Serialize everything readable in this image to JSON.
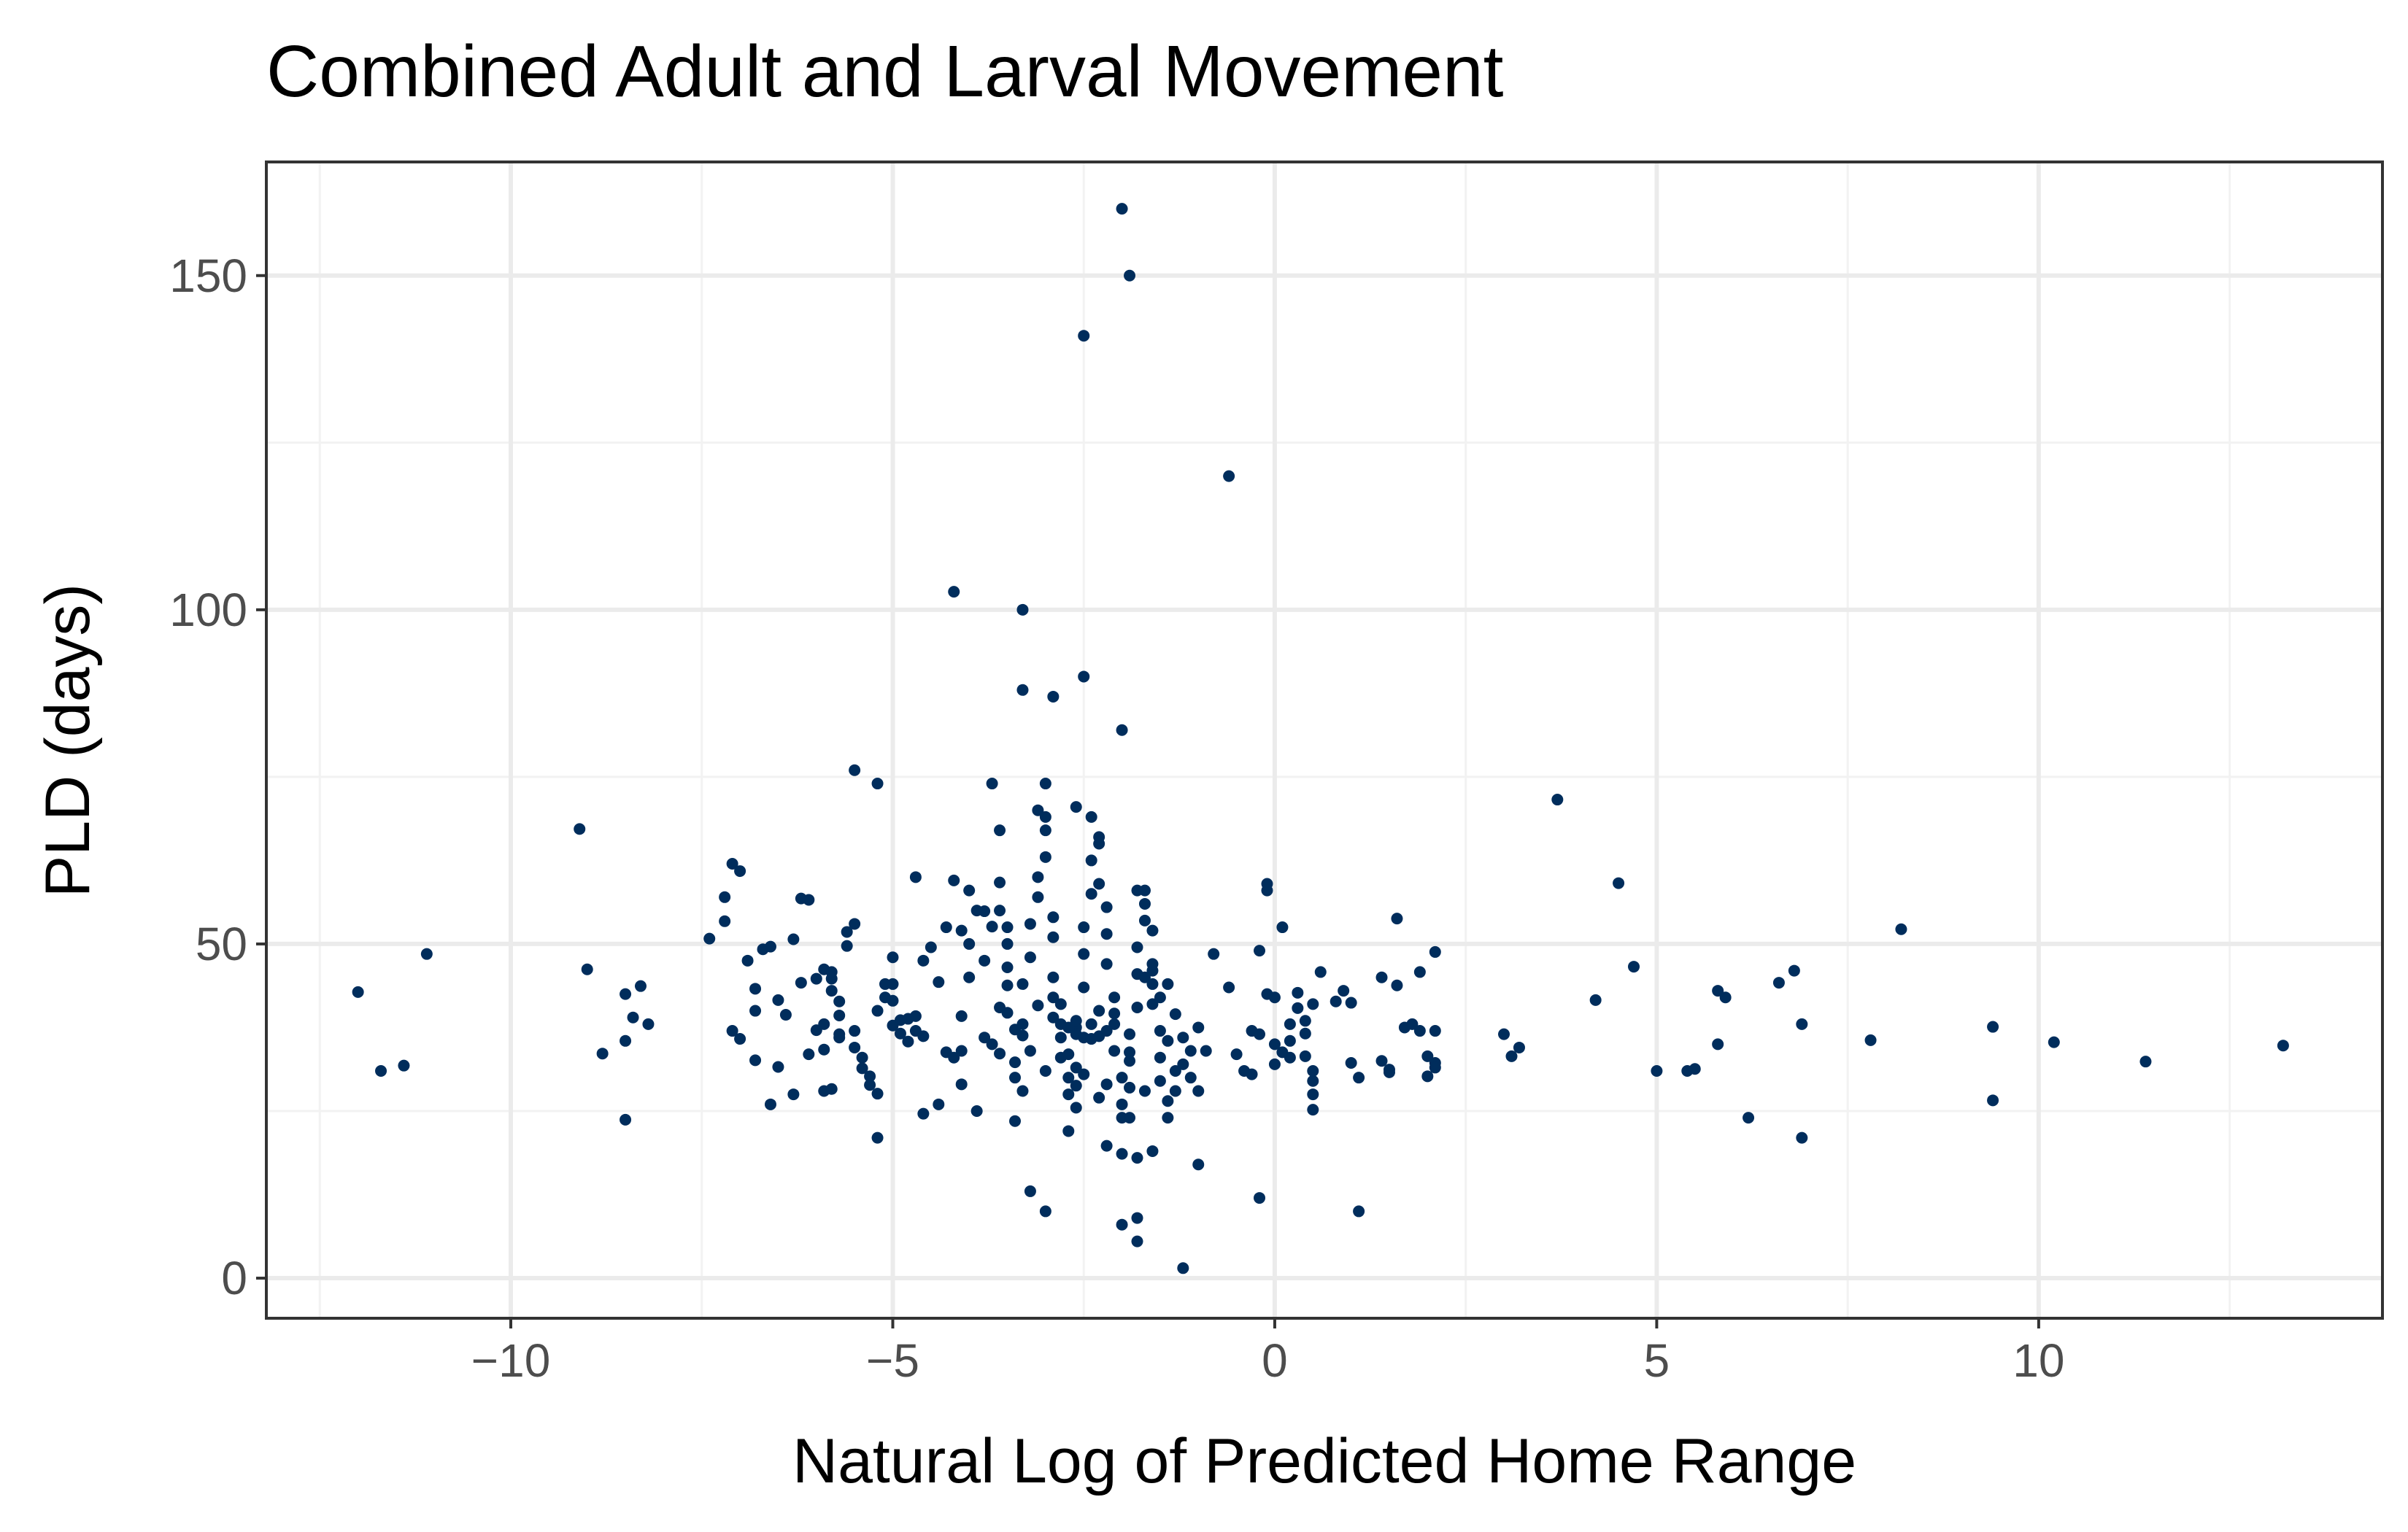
{
  "chart_data": {
    "type": "scatter",
    "title": "Combined Adult and Larval Movement",
    "xlabel": "Natural Log of Predicted Home Range",
    "ylabel": "PLD (days)",
    "xlim": [
      -13.2,
      14.5
    ],
    "ylim": [
      -6,
      167
    ],
    "x_major_ticks": [
      -10,
      -5,
      0,
      5,
      10
    ],
    "x_minor_ticks": [
      -12.5,
      -7.5,
      -2.5,
      2.5,
      7.5,
      12.5
    ],
    "y_major_ticks": [
      0,
      50,
      100,
      150
    ],
    "y_minor_ticks": [
      25,
      75,
      125
    ],
    "x_tick_labels": [
      "−10",
      "−5",
      "0",
      "5",
      "10"
    ],
    "y_tick_labels": [
      "0",
      "50",
      "100",
      "150"
    ],
    "grid": true,
    "legend": "none",
    "point_color": "#002d5c",
    "points": [
      [
        -12.0,
        42.8
      ],
      [
        -11.7,
        31.0
      ],
      [
        -11.4,
        31.8
      ],
      [
        -11.1,
        48.5
      ],
      [
        -9.1,
        67.2
      ],
      [
        -9.0,
        46.2
      ],
      [
        -8.8,
        33.6
      ],
      [
        -8.5,
        42.5
      ],
      [
        -8.5,
        23.7
      ],
      [
        -8.4,
        39.0
      ],
      [
        -8.3,
        43.7
      ],
      [
        -8.2,
        38.0
      ],
      [
        -8.5,
        35.5
      ],
      [
        -7.4,
        50.8
      ],
      [
        -7.2,
        57.0
      ],
      [
        -7.2,
        53.4
      ],
      [
        -7.1,
        62.0
      ],
      [
        -7.0,
        60.9
      ],
      [
        -7.1,
        37.0
      ],
      [
        -7.0,
        35.8
      ],
      [
        -6.9,
        47.5
      ],
      [
        -6.8,
        43.3
      ],
      [
        -6.8,
        40.0
      ],
      [
        -6.7,
        49.2
      ],
      [
        -6.6,
        49.6
      ],
      [
        -6.5,
        41.6
      ],
      [
        -6.5,
        31.6
      ],
      [
        -6.6,
        26.0
      ],
      [
        -6.8,
        32.6
      ],
      [
        -6.4,
        39.4
      ],
      [
        -6.3,
        50.7
      ],
      [
        -6.2,
        56.8
      ],
      [
        -6.1,
        56.6
      ],
      [
        -6.2,
        44.2
      ],
      [
        -6.0,
        44.8
      ],
      [
        -6.0,
        37.1
      ],
      [
        -6.3,
        27.5
      ],
      [
        -6.1,
        33.5
      ],
      [
        -5.9,
        38.0
      ],
      [
        -5.9,
        46.2
      ],
      [
        -5.8,
        45.8
      ],
      [
        -5.8,
        44.8
      ],
      [
        -5.8,
        43.0
      ],
      [
        -5.7,
        41.4
      ],
      [
        -5.7,
        39.3
      ],
      [
        -5.7,
        36.5
      ],
      [
        -5.7,
        36.0
      ],
      [
        -5.8,
        28.3
      ],
      [
        -5.9,
        28.0
      ],
      [
        -5.9,
        34.2
      ],
      [
        -5.6,
        51.8
      ],
      [
        -5.6,
        49.7
      ],
      [
        -5.5,
        53.0
      ],
      [
        -5.5,
        37.0
      ],
      [
        -5.5,
        34.5
      ],
      [
        -5.4,
        33.0
      ],
      [
        -5.4,
        31.4
      ],
      [
        -5.3,
        30.2
      ],
      [
        -5.3,
        28.9
      ],
      [
        -5.2,
        27.6
      ],
      [
        -5.2,
        40.0
      ],
      [
        -5.1,
        42.0
      ],
      [
        -5.1,
        44.0
      ],
      [
        -5.5,
        76.0
      ],
      [
        -5.2,
        74.0
      ],
      [
        -5.0,
        44.0
      ],
      [
        -5.0,
        41.5
      ],
      [
        -5.0,
        37.8
      ],
      [
        -4.9,
        38.6
      ],
      [
        -4.9,
        36.6
      ],
      [
        -4.8,
        35.4
      ],
      [
        -4.8,
        38.8
      ],
      [
        -4.7,
        39.2
      ],
      [
        -4.7,
        37.0
      ],
      [
        -4.6,
        36.2
      ],
      [
        -5.2,
        21.0
      ],
      [
        -4.7,
        60.0
      ],
      [
        -4.6,
        47.5
      ],
      [
        -4.5,
        49.5
      ],
      [
        -4.6,
        24.6
      ],
      [
        -4.4,
        44.3
      ],
      [
        -5.0,
        48.0
      ],
      [
        -4.3,
        33.8
      ],
      [
        -4.1,
        34.0
      ],
      [
        -4.0,
        50.0
      ],
      [
        -4.1,
        39.2
      ],
      [
        -3.9,
        25.0
      ],
      [
        -3.8,
        54.9
      ],
      [
        -3.7,
        52.6
      ],
      [
        -3.7,
        35.0
      ],
      [
        -3.6,
        33.6
      ],
      [
        -3.6,
        59.2
      ],
      [
        -3.6,
        55.0
      ],
      [
        -3.5,
        52.5
      ],
      [
        -3.5,
        50.0
      ],
      [
        -3.5,
        46.5
      ],
      [
        -3.5,
        43.8
      ],
      [
        -3.5,
        39.7
      ],
      [
        -3.4,
        37.2
      ],
      [
        -3.4,
        32.3
      ],
      [
        -3.4,
        23.5
      ],
      [
        -3.3,
        28.0
      ],
      [
        -3.3,
        36.3
      ],
      [
        -3.3,
        44.0
      ],
      [
        -3.2,
        48.0
      ],
      [
        -3.2,
        53.0
      ],
      [
        -3.1,
        57.0
      ],
      [
        -3.1,
        60.0
      ],
      [
        -3.0,
        74.0
      ],
      [
        -3.0,
        69.0
      ],
      [
        -3.0,
        67.0
      ],
      [
        -3.0,
        63.0
      ],
      [
        -2.9,
        54.0
      ],
      [
        -2.9,
        51.0
      ],
      [
        -2.9,
        45.0
      ],
      [
        -2.8,
        41.0
      ],
      [
        -2.8,
        36.0
      ],
      [
        -2.8,
        33.0
      ],
      [
        -2.7,
        30.0
      ],
      [
        -2.7,
        27.5
      ],
      [
        -2.7,
        22.0
      ],
      [
        -2.6,
        25.5
      ],
      [
        -2.6,
        31.5
      ],
      [
        -2.6,
        37.5
      ],
      [
        -2.5,
        43.5
      ],
      [
        -2.5,
        48.5
      ],
      [
        -2.5,
        52.5
      ],
      [
        -2.4,
        57.5
      ],
      [
        -2.4,
        62.5
      ],
      [
        -2.4,
        69.0
      ],
      [
        -2.3,
        65.0
      ],
      [
        -2.3,
        59.0
      ],
      [
        -2.2,
        55.5
      ],
      [
        -2.2,
        51.5
      ],
      [
        -2.2,
        47.0
      ],
      [
        -2.1,
        42.0
      ],
      [
        -2.1,
        38.0
      ],
      [
        -2.1,
        34.0
      ],
      [
        -2.0,
        30.0
      ],
      [
        -2.0,
        26.0
      ],
      [
        -2.0,
        24.0
      ],
      [
        -1.9,
        28.5
      ],
      [
        -1.9,
        32.5
      ],
      [
        -1.9,
        36.5
      ],
      [
        -1.8,
        40.5
      ],
      [
        -1.8,
        45.5
      ],
      [
        -1.8,
        49.5
      ],
      [
        -1.7,
        53.5
      ],
      [
        -1.7,
        56.0
      ],
      [
        -1.7,
        58.0
      ],
      [
        -1.6,
        52.0
      ],
      [
        -1.6,
        46.0
      ],
      [
        -1.6,
        41.0
      ],
      [
        -1.5,
        37.0
      ],
      [
        -1.5,
        33.0
      ],
      [
        -1.5,
        29.5
      ],
      [
        -1.4,
        26.5
      ],
      [
        -1.4,
        24.0
      ],
      [
        -1.4,
        35.5
      ],
      [
        -1.3,
        39.5
      ],
      [
        -1.3,
        31.0
      ],
      [
        -1.3,
        28.0
      ],
      [
        -1.2,
        32.0
      ],
      [
        -1.2,
        36.0
      ],
      [
        -1.1,
        34.0
      ],
      [
        -1.1,
        30.0
      ],
      [
        -1.0,
        28.0
      ],
      [
        -1.0,
        37.5
      ],
      [
        -0.9,
        34.0
      ],
      [
        -2.0,
        160.0
      ],
      [
        -1.9,
        150.0
      ],
      [
        -2.5,
        141.0
      ],
      [
        -0.6,
        120.0
      ],
      [
        -4.2,
        102.7
      ],
      [
        -3.3,
        100.0
      ],
      [
        -2.5,
        90.0
      ],
      [
        -3.3,
        88.0
      ],
      [
        -2.9,
        87.0
      ],
      [
        -2.0,
        82.0
      ],
      [
        -3.7,
        74.0
      ],
      [
        -3.1,
        70.0
      ],
      [
        -2.6,
        70.5
      ],
      [
        -2.3,
        66.0
      ],
      [
        -3.6,
        67.0
      ],
      [
        -1.8,
        58.0
      ],
      [
        -1.7,
        45.0
      ],
      [
        -1.6,
        47.0
      ],
      [
        -1.6,
        44.0
      ],
      [
        -1.5,
        42.0
      ],
      [
        -1.4,
        44.0
      ],
      [
        -1.9,
        24.0
      ],
      [
        -2.2,
        19.8
      ],
      [
        -2.0,
        18.6
      ],
      [
        -1.8,
        18.0
      ],
      [
        -1.6,
        19.0
      ],
      [
        -1.0,
        17.0
      ],
      [
        -2.0,
        8.0
      ],
      [
        -1.8,
        9.0
      ],
      [
        -1.8,
        5.5
      ],
      [
        -3.2,
        13.0
      ],
      [
        -3.0,
        10.0
      ],
      [
        -1.2,
        1.5
      ],
      [
        -2.9,
        39.0
      ],
      [
        -2.8,
        38.0
      ],
      [
        -2.7,
        37.5
      ],
      [
        -2.6,
        36.5
      ],
      [
        -2.5,
        36.0
      ],
      [
        -2.4,
        35.8
      ],
      [
        -2.3,
        36.2
      ],
      [
        -2.2,
        37.0
      ],
      [
        -2.6,
        38.5
      ],
      [
        -2.4,
        38.0
      ],
      [
        -2.3,
        40.0
      ],
      [
        -2.1,
        39.6
      ],
      [
        -3.3,
        38.0
      ],
      [
        -3.1,
        40.8
      ],
      [
        -2.9,
        42.0
      ],
      [
        -2.7,
        33.5
      ],
      [
        -3.0,
        31.0
      ],
      [
        -2.5,
        30.5
      ],
      [
        -2.2,
        29.0
      ],
      [
        -1.9,
        33.8
      ],
      [
        -1.7,
        28.0
      ],
      [
        -2.3,
        27.0
      ],
      [
        -2.6,
        28.8
      ],
      [
        -3.4,
        30.0
      ],
      [
        -3.2,
        34.0
      ],
      [
        -3.6,
        40.5
      ],
      [
        -4.0,
        45.0
      ],
      [
        -3.8,
        47.5
      ],
      [
        -3.9,
        55.0
      ],
      [
        -4.1,
        52.0
      ],
      [
        -4.3,
        52.5
      ],
      [
        -4.2,
        59.5
      ],
      [
        -4.0,
        58.0
      ],
      [
        -3.8,
        36.0
      ],
      [
        -4.2,
        33.0
      ],
      [
        -4.4,
        26.0
      ],
      [
        -4.1,
        29.0
      ],
      [
        -0.8,
        48.5
      ],
      [
        -0.6,
        43.5
      ],
      [
        -0.5,
        33.5
      ],
      [
        -0.4,
        31.0
      ],
      [
        -0.3,
        37.0
      ],
      [
        -0.3,
        30.5
      ],
      [
        -0.2,
        36.5
      ],
      [
        -0.2,
        49.0
      ],
      [
        -0.1,
        42.5
      ],
      [
        -0.1,
        58.0
      ],
      [
        -0.1,
        59.0
      ],
      [
        0.0,
        42.0
      ],
      [
        0.0,
        35.0
      ],
      [
        0.0,
        32.0
      ],
      [
        0.1,
        33.8
      ],
      [
        0.1,
        52.5
      ],
      [
        0.2,
        38.0
      ],
      [
        0.2,
        35.5
      ],
      [
        0.2,
        33.0
      ],
      [
        0.3,
        42.7
      ],
      [
        0.3,
        40.4
      ],
      [
        0.4,
        36.6
      ],
      [
        0.4,
        33.2
      ],
      [
        0.5,
        31.0
      ],
      [
        0.5,
        29.5
      ],
      [
        0.5,
        27.5
      ],
      [
        0.5,
        25.2
      ],
      [
        0.4,
        38.5
      ],
      [
        0.5,
        41.0
      ],
      [
        0.6,
        45.8
      ],
      [
        0.8,
        41.4
      ],
      [
        0.9,
        43.0
      ],
      [
        1.0,
        41.2
      ],
      [
        1.0,
        32.2
      ],
      [
        1.1,
        30.0
      ],
      [
        1.1,
        10.0
      ],
      [
        1.4,
        32.5
      ],
      [
        1.4,
        45.0
      ],
      [
        1.5,
        31.2
      ],
      [
        1.5,
        30.8
      ],
      [
        1.6,
        43.8
      ],
      [
        1.6,
        53.8
      ],
      [
        1.7,
        37.5
      ],
      [
        1.8,
        38.0
      ],
      [
        1.9,
        37.0
      ],
      [
        1.9,
        45.8
      ],
      [
        2.0,
        33.2
      ],
      [
        2.0,
        30.2
      ],
      [
        2.1,
        37.0
      ],
      [
        2.1,
        32.2
      ],
      [
        2.1,
        31.5
      ],
      [
        2.1,
        48.8
      ],
      [
        -0.2,
        12.0
      ],
      [
        3.0,
        36.5
      ],
      [
        3.1,
        33.2
      ],
      [
        3.2,
        34.5
      ],
      [
        3.7,
        71.6
      ],
      [
        4.2,
        41.6
      ],
      [
        4.5,
        59.1
      ],
      [
        4.7,
        46.6
      ],
      [
        5.0,
        31.0
      ],
      [
        5.4,
        31.0
      ],
      [
        5.5,
        31.3
      ],
      [
        5.8,
        43.0
      ],
      [
        5.8,
        35.0
      ],
      [
        5.9,
        42.0
      ],
      [
        6.2,
        24.0
      ],
      [
        6.6,
        44.2
      ],
      [
        6.8,
        46.0
      ],
      [
        6.9,
        38.0
      ],
      [
        6.9,
        21.0
      ],
      [
        7.8,
        35.6
      ],
      [
        8.2,
        52.2
      ],
      [
        9.4,
        37.6
      ],
      [
        9.4,
        26.6
      ],
      [
        10.2,
        35.3
      ],
      [
        11.4,
        32.4
      ],
      [
        13.2,
        34.8
      ]
    ]
  }
}
